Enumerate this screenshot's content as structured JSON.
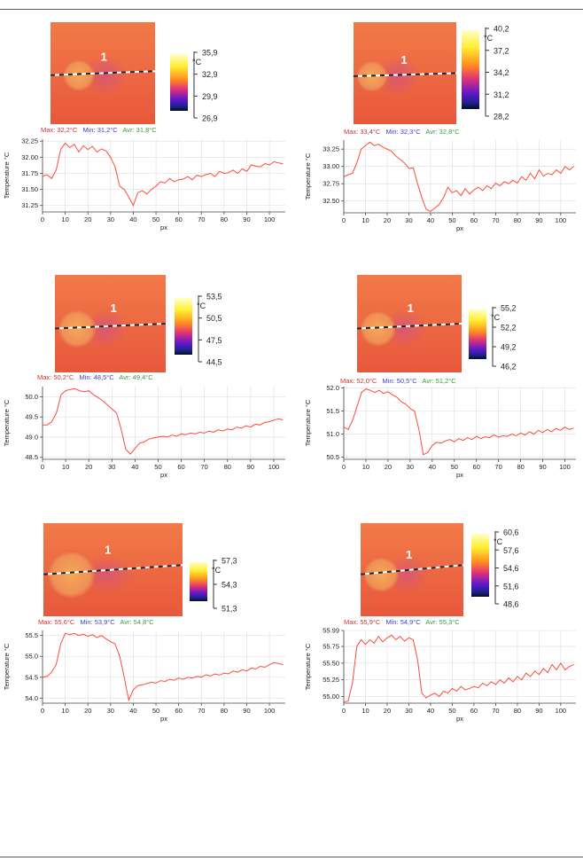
{
  "colors": {
    "max_label": "#d03030",
    "min_label": "#4040c8",
    "avr_label": "#3a9a3a",
    "trace": "#ff4a3a",
    "trace_dip": "#8a3ab0",
    "grid": "#dddddd"
  },
  "panels": [
    {
      "marker": "1",
      "stats": {
        "max": "Max: 32,2°C",
        "min": "Min: 31,2°C",
        "avr": "Avr: 31,8°C"
      },
      "scale_unit": "°C",
      "scale_labels": [
        "35,9",
        "32,9",
        "29,9",
        "26,9"
      ]
    },
    {
      "marker": "1",
      "stats": {
        "max": "Max: 33,4°C",
        "min": "Min: 32,3°C",
        "avr": "Avr: 32,8°C"
      },
      "scale_unit": "°C",
      "scale_labels": [
        "40,2",
        "37,2",
        "34,2",
        "31,2",
        "28,2"
      ]
    },
    {
      "marker": "1",
      "stats": {
        "max": "Max: 50,2°C",
        "min": "Min: 48,5°C",
        "avr": "Avr: 49,4°C"
      },
      "scale_unit": "°C",
      "scale_labels": [
        "53,5",
        "50,5",
        "47,5",
        "44,5"
      ]
    },
    {
      "marker": "1",
      "stats": {
        "max": "Max: 52,0°C",
        "min": "Min: 50,5°C",
        "avr": "Avr: 51,2°C"
      },
      "scale_unit": "°C",
      "scale_labels": [
        "55,2",
        "52,2",
        "49,2",
        "46,2"
      ]
    },
    {
      "marker": "1",
      "stats": {
        "max": "Max: 55,6°C",
        "min": "Min: 53,9°C",
        "avr": "Avr: 54,8°C"
      },
      "scale_unit": "°C",
      "scale_labels": [
        "57,3",
        "54,3",
        "51,3"
      ]
    },
    {
      "marker": "1",
      "stats": {
        "max": "Max: 55,9°C",
        "min": "Min: 54,9°C",
        "avr": "Avr: 55,3°C"
      },
      "scale_unit": "°C",
      "scale_labels": [
        "60,6",
        "57,6",
        "54,6",
        "51,6",
        "48,6"
      ]
    }
  ],
  "chart_data": [
    {
      "type": "line",
      "xlabel": "px",
      "ylabel": "Temperature °C",
      "xlim": [
        0,
        107
      ],
      "ylim": [
        31.15,
        32.28
      ],
      "xticks": [
        "0",
        "10",
        "20",
        "30",
        "40",
        "50",
        "60",
        "70",
        "80",
        "90",
        "100"
      ],
      "yticks": [
        "31.25",
        "31.50",
        "31.75",
        "32.00",
        "32.25"
      ],
      "ytick_values": [
        31.25,
        31.5,
        31.75,
        32.0,
        32.25
      ],
      "x": [
        0,
        2,
        4,
        6,
        8,
        10,
        12,
        14,
        16,
        18,
        20,
        22,
        24,
        26,
        28,
        30,
        32,
        34,
        36,
        38,
        40,
        42,
        44,
        46,
        48,
        50,
        52,
        54,
        56,
        58,
        60,
        62,
        64,
        66,
        68,
        70,
        72,
        74,
        76,
        78,
        80,
        82,
        84,
        86,
        88,
        90,
        92,
        94,
        96,
        98,
        100,
        102,
        104,
        106
      ],
      "y": [
        31.7,
        31.73,
        31.67,
        31.8,
        32.12,
        32.22,
        32.15,
        32.2,
        32.08,
        32.18,
        32.12,
        32.17,
        32.08,
        32.13,
        32.1,
        32.0,
        31.85,
        31.55,
        31.5,
        31.38,
        31.25,
        31.45,
        31.48,
        31.43,
        31.5,
        31.55,
        31.62,
        31.6,
        31.67,
        31.62,
        31.65,
        31.66,
        31.7,
        31.65,
        31.72,
        31.7,
        31.73,
        31.75,
        31.7,
        31.78,
        31.75,
        31.76,
        31.8,
        31.75,
        31.82,
        31.78,
        31.88,
        31.86,
        31.85,
        31.9,
        31.88,
        31.93,
        31.91,
        31.9
      ]
    },
    {
      "type": "line",
      "xlabel": "px",
      "ylabel": "Temperature °C",
      "xlim": [
        0,
        107
      ],
      "ylim": [
        32.33,
        33.38
      ],
      "xticks": [
        "0",
        "10",
        "20",
        "30",
        "40",
        "50",
        "60",
        "70",
        "80",
        "90",
        "100"
      ],
      "yticks": [
        "32.50",
        "32.75",
        "33.00",
        "33.25"
      ],
      "ytick_values": [
        32.5,
        32.75,
        33.0,
        33.25
      ],
      "x": [
        0,
        2,
        4,
        6,
        8,
        10,
        12,
        14,
        16,
        18,
        20,
        22,
        24,
        26,
        28,
        30,
        32,
        34,
        36,
        38,
        40,
        42,
        44,
        46,
        48,
        50,
        52,
        54,
        56,
        58,
        60,
        62,
        64,
        66,
        68,
        70,
        72,
        74,
        76,
        78,
        80,
        82,
        84,
        86,
        88,
        90,
        92,
        94,
        96,
        98,
        100,
        102,
        104,
        106
      ],
      "y": [
        32.85,
        32.88,
        32.9,
        33.05,
        33.25,
        33.3,
        33.35,
        33.3,
        33.32,
        33.28,
        33.25,
        33.22,
        33.15,
        33.1,
        33.05,
        32.97,
        32.98,
        32.75,
        32.55,
        32.38,
        32.35,
        32.4,
        32.45,
        32.55,
        32.7,
        32.62,
        32.65,
        32.58,
        32.68,
        32.6,
        32.66,
        32.7,
        32.65,
        32.72,
        32.68,
        32.76,
        32.72,
        32.78,
        32.75,
        32.8,
        32.76,
        32.85,
        32.8,
        32.9,
        32.82,
        32.95,
        32.86,
        32.9,
        32.88,
        32.95,
        32.9,
        33.0,
        32.95,
        33.0
      ]
    },
    {
      "type": "line",
      "xlabel": "px",
      "ylabel": "Temperature °C",
      "xlim": [
        0,
        105
      ],
      "ylim": [
        48.45,
        50.25
      ],
      "xticks": [
        "0",
        "10",
        "20",
        "30",
        "40",
        "50",
        "60",
        "70",
        "80",
        "90",
        "100"
      ],
      "yticks": [
        "48.5",
        "49.0",
        "49.5",
        "50.0"
      ],
      "ytick_values": [
        48.5,
        49.0,
        49.5,
        50.0
      ],
      "x": [
        0,
        2,
        4,
        6,
        8,
        10,
        12,
        14,
        16,
        18,
        20,
        22,
        24,
        26,
        28,
        30,
        32,
        34,
        36,
        38,
        40,
        42,
        44,
        46,
        48,
        50,
        52,
        54,
        56,
        58,
        60,
        62,
        64,
        66,
        68,
        70,
        72,
        74,
        76,
        78,
        80,
        82,
        84,
        86,
        88,
        90,
        92,
        94,
        96,
        98,
        100,
        102,
        104
      ],
      "y": [
        49.3,
        49.3,
        49.38,
        49.6,
        50.05,
        50.15,
        50.18,
        50.2,
        50.15,
        50.12,
        50.15,
        50.05,
        49.98,
        49.9,
        49.8,
        49.7,
        49.6,
        49.2,
        48.7,
        48.58,
        48.72,
        48.85,
        48.88,
        48.95,
        48.98,
        49.0,
        49.02,
        49.0,
        49.05,
        49.02,
        49.08,
        49.06,
        49.1,
        49.08,
        49.12,
        49.1,
        49.15,
        49.12,
        49.18,
        49.15,
        49.2,
        49.18,
        49.25,
        49.22,
        49.28,
        49.25,
        49.32,
        49.3,
        49.36,
        49.38,
        49.42,
        49.45,
        49.43
      ]
    },
    {
      "type": "line",
      "xlabel": "px",
      "ylabel": "Temperature °C",
      "xlim": [
        0,
        105
      ],
      "ylim": [
        50.45,
        52.03
      ],
      "xticks": [
        "0",
        "10",
        "20",
        "30",
        "40",
        "50",
        "60",
        "70",
        "80",
        "90",
        "100"
      ],
      "yticks": [
        "50.5",
        "51.0",
        "51.5",
        "52.0"
      ],
      "ytick_values": [
        50.5,
        51.0,
        51.5,
        52.0
      ],
      "x": [
        0,
        2,
        4,
        6,
        8,
        10,
        12,
        14,
        16,
        18,
        20,
        22,
        24,
        26,
        28,
        30,
        32,
        34,
        36,
        38,
        40,
        42,
        44,
        46,
        48,
        50,
        52,
        54,
        56,
        58,
        60,
        62,
        64,
        66,
        68,
        70,
        72,
        74,
        76,
        78,
        80,
        82,
        84,
        86,
        88,
        90,
        92,
        94,
        96,
        98,
        100,
        102,
        104
      ],
      "y": [
        51.15,
        51.1,
        51.3,
        51.6,
        51.9,
        51.98,
        51.95,
        51.9,
        51.95,
        51.88,
        51.92,
        51.85,
        51.8,
        51.7,
        51.65,
        51.55,
        51.5,
        51.1,
        50.55,
        50.6,
        50.75,
        50.82,
        50.8,
        50.85,
        50.88,
        50.83,
        50.9,
        50.86,
        50.92,
        50.88,
        50.95,
        50.9,
        50.94,
        50.92,
        50.98,
        50.93,
        50.96,
        50.95,
        51.0,
        50.96,
        51.02,
        50.98,
        51.05,
        51.0,
        51.08,
        51.03,
        51.1,
        51.05,
        51.12,
        51.08,
        51.15,
        51.1,
        51.13
      ]
    },
    {
      "type": "line",
      "xlabel": "px",
      "ylabel": "Temperature °C",
      "xlim": [
        0,
        107
      ],
      "ylim": [
        53.88,
        55.62
      ],
      "xticks": [
        "0",
        "10",
        "20",
        "30",
        "40",
        "50",
        "60",
        "70",
        "80",
        "90",
        "100"
      ],
      "yticks": [
        "54.0",
        "54.5",
        "55.0",
        "55.5"
      ],
      "ytick_values": [
        54.0,
        54.5,
        55.0,
        55.5
      ],
      "x": [
        0,
        2,
        4,
        6,
        8,
        10,
        12,
        14,
        16,
        18,
        20,
        22,
        24,
        26,
        28,
        30,
        32,
        34,
        36,
        38,
        40,
        42,
        44,
        46,
        48,
        50,
        52,
        54,
        56,
        58,
        60,
        62,
        64,
        66,
        68,
        70,
        72,
        74,
        76,
        78,
        80,
        82,
        84,
        86,
        88,
        90,
        92,
        94,
        96,
        98,
        100,
        102,
        104,
        106
      ],
      "y": [
        54.5,
        54.52,
        54.62,
        54.8,
        55.3,
        55.55,
        55.52,
        55.55,
        55.5,
        55.53,
        55.48,
        55.52,
        55.45,
        55.5,
        55.42,
        55.35,
        55.3,
        55.0,
        54.5,
        53.95,
        54.2,
        54.3,
        54.32,
        54.35,
        54.38,
        54.36,
        54.42,
        54.4,
        54.45,
        54.43,
        54.48,
        54.45,
        54.5,
        54.48,
        54.52,
        54.5,
        54.56,
        54.53,
        54.58,
        54.55,
        54.6,
        54.58,
        54.65,
        54.62,
        54.68,
        54.65,
        54.72,
        54.7,
        54.76,
        54.74,
        54.8,
        54.85,
        54.83,
        54.8
      ]
    },
    {
      "type": "line",
      "xlabel": "px",
      "ylabel": "Temperature °C",
      "xlim": [
        0,
        107
      ],
      "ylim": [
        54.9,
        55.99
      ],
      "xticks": [
        "0",
        "10",
        "20",
        "30",
        "40",
        "50",
        "60",
        "70",
        "80",
        "90",
        "100"
      ],
      "yticks": [
        "55.00",
        "55.25",
        "55.50",
        "55.75",
        "55.99"
      ],
      "ytick_values": [
        55.0,
        55.25,
        55.5,
        55.75,
        55.99
      ],
      "x": [
        0,
        2,
        4,
        6,
        8,
        10,
        12,
        14,
        16,
        18,
        20,
        22,
        24,
        26,
        28,
        30,
        32,
        34,
        36,
        38,
        40,
        42,
        44,
        46,
        48,
        50,
        52,
        54,
        56,
        58,
        60,
        62,
        64,
        66,
        68,
        70,
        72,
        74,
        76,
        78,
        80,
        82,
        84,
        86,
        88,
        90,
        92,
        94,
        96,
        98,
        100,
        102,
        104,
        106
      ],
      "y": [
        54.92,
        54.93,
        55.2,
        55.75,
        55.85,
        55.78,
        55.85,
        55.8,
        55.9,
        55.82,
        55.88,
        55.92,
        55.85,
        55.9,
        55.83,
        55.88,
        55.85,
        55.55,
        55.05,
        54.98,
        55.02,
        55.05,
        55.0,
        55.08,
        55.05,
        55.12,
        55.08,
        55.15,
        55.1,
        55.12,
        55.15,
        55.13,
        55.2,
        55.16,
        55.22,
        55.18,
        55.25,
        55.2,
        55.28,
        55.22,
        55.3,
        55.25,
        55.35,
        55.3,
        55.38,
        55.33,
        55.42,
        55.36,
        55.48,
        55.4,
        55.5,
        55.4,
        55.45,
        55.48
      ]
    }
  ]
}
